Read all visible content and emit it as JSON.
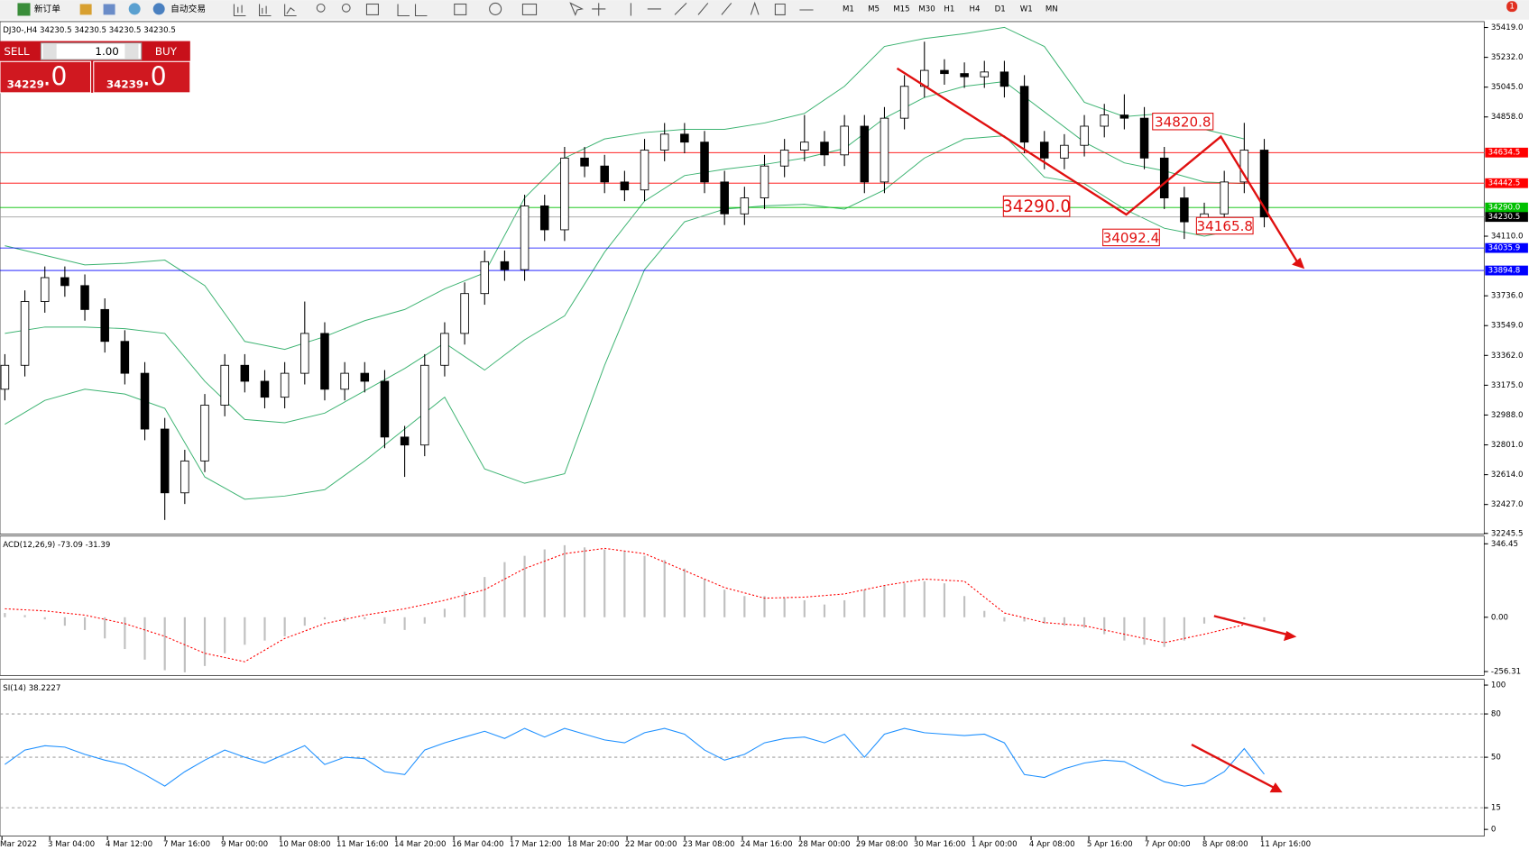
{
  "toolbar": {
    "new_order": "新订单",
    "auto_trading": "自动交易",
    "timeframes": [
      "M1",
      "M5",
      "M15",
      "M30",
      "H1",
      "H4",
      "D1",
      "W1",
      "MN"
    ],
    "notification": "1"
  },
  "trade_panel": {
    "sell": "SELL",
    "lot": "1.00",
    "buy": "BUY",
    "sell_price": "34229",
    "sell_price_tail": ".0",
    "buy_price": "34239",
    "buy_price_tail": ".0"
  },
  "time_axis": [
    "Mar 2022",
    "3 Mar 04:00",
    "4 Mar 12:00",
    "7 Mar 16:00",
    "9 Mar 00:00",
    "10 Mar 08:00",
    "11 Mar 16:00",
    "14 Mar 20:00",
    "16 Mar 04:00",
    "17 Mar 12:00",
    "18 Mar 20:00",
    "22 Mar 00:00",
    "23 Mar 08:00",
    "24 Mar 16:00",
    "28 Mar 00:00",
    "29 Mar 08:00",
    "30 Mar 16:00",
    "1 Apr 00:00",
    "4 Apr 08:00",
    "5 Apr 16:00",
    "7 Apr 00:00",
    "8 Apr 08:00",
    "11 Apr 16:00"
  ],
  "chart_data": [
    {
      "type": "candlestick",
      "title": "DJ30-,H4  34230.5 34230.5 34230.5 34230.5",
      "candles": [
        [
          33150,
          33370,
          33080,
          33300
        ],
        [
          33300,
          33770,
          33230,
          33700
        ],
        [
          33700,
          33920,
          33630,
          33850
        ],
        [
          33850,
          33920,
          33730,
          33800
        ],
        [
          33800,
          33870,
          33580,
          33650
        ],
        [
          33650,
          33720,
          33380,
          33450
        ],
        [
          33450,
          33520,
          33180,
          33250
        ],
        [
          33250,
          33320,
          32830,
          32900
        ],
        [
          32900,
          32970,
          32330,
          32500
        ],
        [
          32500,
          32770,
          32430,
          32700
        ],
        [
          32700,
          33120,
          32630,
          33050
        ],
        [
          33050,
          33370,
          32980,
          33300
        ],
        [
          33300,
          33370,
          33130,
          33200
        ],
        [
          33200,
          33270,
          33030,
          33100
        ],
        [
          33100,
          33320,
          33030,
          33250
        ],
        [
          33250,
          33700,
          33180,
          33500
        ],
        [
          33500,
          33570,
          33080,
          33150
        ],
        [
          33150,
          33320,
          33080,
          33250
        ],
        [
          33250,
          33320,
          33130,
          33200
        ],
        [
          33200,
          33270,
          32780,
          32850
        ],
        [
          32850,
          32920,
          32600,
          32800
        ],
        [
          32800,
          33370,
          32730,
          33300
        ],
        [
          33300,
          33570,
          33230,
          33500
        ],
        [
          33500,
          33820,
          33430,
          33750
        ],
        [
          33750,
          34020,
          33680,
          33950
        ],
        [
          33950,
          34020,
          33830,
          33900
        ],
        [
          33900,
          34370,
          33830,
          34300
        ],
        [
          34300,
          34370,
          34080,
          34150
        ],
        [
          34150,
          34670,
          34080,
          34600
        ],
        [
          34600,
          34670,
          34480,
          34550
        ],
        [
          34550,
          34620,
          34380,
          34450
        ],
        [
          34450,
          34520,
          34330,
          34400
        ],
        [
          34400,
          34720,
          34330,
          34650
        ],
        [
          34650,
          34820,
          34580,
          34750
        ],
        [
          34750,
          34820,
          34630,
          34700
        ],
        [
          34700,
          34770,
          34380,
          34450
        ],
        [
          34450,
          34520,
          34180,
          34250
        ],
        [
          34250,
          34420,
          34180,
          34350
        ],
        [
          34350,
          34620,
          34280,
          34550
        ],
        [
          34550,
          34720,
          34480,
          34650
        ],
        [
          34650,
          34870,
          34580,
          34700
        ],
        [
          34700,
          34770,
          34550,
          34620
        ],
        [
          34620,
          34870,
          34550,
          34800
        ],
        [
          34800,
          34870,
          34380,
          34450
        ],
        [
          34450,
          34920,
          34380,
          34850
        ],
        [
          34850,
          35120,
          34780,
          35050
        ],
        [
          35050,
          35330,
          34980,
          35150
        ],
        [
          35150,
          35220,
          35060,
          35130
        ],
        [
          35130,
          35200,
          35040,
          35110
        ],
        [
          35110,
          35210,
          35040,
          35140
        ],
        [
          35140,
          35210,
          34980,
          35050
        ],
        [
          35050,
          35120,
          34630,
          34700
        ],
        [
          34700,
          34770,
          34530,
          34600
        ],
        [
          34600,
          34750,
          34530,
          34680
        ],
        [
          34680,
          34870,
          34610,
          34800
        ],
        [
          34800,
          34940,
          34730,
          34870
        ],
        [
          34870,
          35000,
          34780,
          34850
        ],
        [
          34850,
          34920,
          34530,
          34600
        ],
        [
          34600,
          34670,
          34280,
          34350
        ],
        [
          34350,
          34420,
          34092.4,
          34200
        ],
        [
          34200,
          34320,
          34130,
          34250
        ],
        [
          34250,
          34520,
          34180,
          34450
        ],
        [
          34450,
          34820.8,
          34380,
          34650
        ],
        [
          34650,
          34720,
          34165.8,
          34230.5
        ]
      ],
      "bands": {
        "color": "#3cb371",
        "upper": [
          34050,
          33990,
          33930,
          33940,
          33960,
          33800,
          33450,
          33400,
          33480,
          33580,
          33650,
          33780,
          33880,
          34350,
          34600,
          34720,
          34760,
          34780,
          34780,
          34820,
          34880,
          35050,
          35300,
          35350,
          35380,
          35420,
          35300,
          34950,
          34860,
          34880,
          34780,
          34720
        ],
        "middle": [
          33500,
          33540,
          33540,
          33530,
          33500,
          33200,
          32960,
          32940,
          33000,
          33140,
          33280,
          33440,
          33270,
          33460,
          33610,
          34010,
          34330,
          34490,
          34530,
          34560,
          34600,
          34660,
          34850,
          34980,
          35050,
          35080,
          34890,
          34700,
          34570,
          34520,
          34450,
          34440
        ],
        "lower": [
          32930,
          33080,
          33150,
          33120,
          33030,
          32600,
          32460,
          32480,
          32520,
          32700,
          32900,
          33100,
          32650,
          32560,
          32620,
          33300,
          33900,
          34200,
          34280,
          34300,
          34310,
          34280,
          34400,
          34600,
          34720,
          34740,
          34480,
          34440,
          34280,
          34160,
          34110,
          34160
        ]
      },
      "levels": [
        {
          "value": 34634.5,
          "color": "#ff0000"
        },
        {
          "value": 34442.5,
          "color": "#ff0000"
        },
        {
          "value": 34290,
          "label": "34290.0",
          "color": "#00c000"
        },
        {
          "value": 34230.5,
          "color": "#000000"
        },
        {
          "value": 34035.9,
          "color": "#0000ff"
        },
        {
          "value": 33894.8,
          "color": "#0000ff"
        }
      ],
      "annotations": [
        "34820.8",
        "34290.0",
        "34092.4",
        "34165.8"
      ],
      "ylim": [
        32241,
        35456
      ],
      "yticks": [
        {
          "value": 35419,
          "label": "35419.0"
        },
        {
          "value": 35232,
          "label": "35232.0"
        },
        {
          "value": 35045,
          "label": "35045.0"
        },
        {
          "value": 34858,
          "label": "34858.0"
        },
        {
          "value": 34110,
          "label": "34110.0"
        },
        {
          "value": 33736,
          "label": "33736.0"
        },
        {
          "value": 33549,
          "label": "33549.0"
        },
        {
          "value": 33362,
          "label": "33362.0"
        },
        {
          "value": 33175,
          "label": "33175.0"
        },
        {
          "value": 32988,
          "label": "32988.0"
        },
        {
          "value": 32801,
          "label": "32801.0"
        },
        {
          "value": 32614,
          "label": "32614.0"
        },
        {
          "value": 32427,
          "label": "32427.0"
        },
        32245.5
      ]
    },
    {
      "type": "histogram",
      "title": "ACD(12,26,9) -73.09 -31.39",
      "color": "#c0c0c0",
      "values": [
        20,
        10,
        -10,
        -40,
        -60,
        -100,
        -150,
        -200,
        -250,
        -260,
        -230,
        -170,
        -130,
        -110,
        -90,
        -40,
        -10,
        -20,
        -10,
        -30,
        -60,
        -30,
        40,
        120,
        190,
        260,
        290,
        320,
        340,
        330,
        320,
        310,
        290,
        270,
        230,
        180,
        130,
        100,
        100,
        90,
        80,
        60,
        80,
        130,
        150,
        160,
        170,
        160,
        100,
        30,
        -20,
        -20,
        -30,
        -40,
        -50,
        -80,
        -110,
        -130,
        -140,
        -110,
        -30,
        -10,
        -10,
        -20
      ],
      "signal": {
        "color": "#ff0000",
        "values": [
          40,
          30,
          10,
          -30,
          -90,
          -170,
          -210,
          -100,
          -30,
          10,
          40,
          80,
          130,
          230,
          300,
          325,
          300,
          220,
          140,
          90,
          95,
          110,
          150,
          180,
          170,
          20,
          -25,
          -40,
          -80,
          -120,
          -80,
          -35
        ]
      },
      "ylim": [
        -274.5,
        383
      ],
      "yticks": [
        346.45,
        {
          "value": 0,
          "label": "0.00"
        },
        -256.31
      ]
    },
    {
      "type": "line",
      "title": "SI(14) 38.2227",
      "color": "#1e90ff",
      "values": [
        45,
        55,
        58,
        57,
        52,
        48,
        45,
        38,
        30,
        40,
        48,
        55,
        50,
        46,
        52,
        58,
        45,
        50,
        49,
        40,
        38,
        55,
        60,
        64,
        68,
        63,
        70,
        64,
        70,
        66,
        62,
        60,
        67,
        70,
        66,
        55,
        48,
        52,
        60,
        63,
        64,
        60,
        66,
        50,
        66,
        70,
        67,
        66,
        65,
        66,
        60,
        38,
        36,
        42,
        46,
        48,
        47,
        40,
        33,
        30,
        32,
        40,
        56,
        38.2227
      ],
      "levels": [
        80,
        50,
        15
      ],
      "ylim": [
        -4.7,
        104
      ],
      "yticks": [
        100,
        80,
        50,
        15,
        0
      ]
    }
  ]
}
